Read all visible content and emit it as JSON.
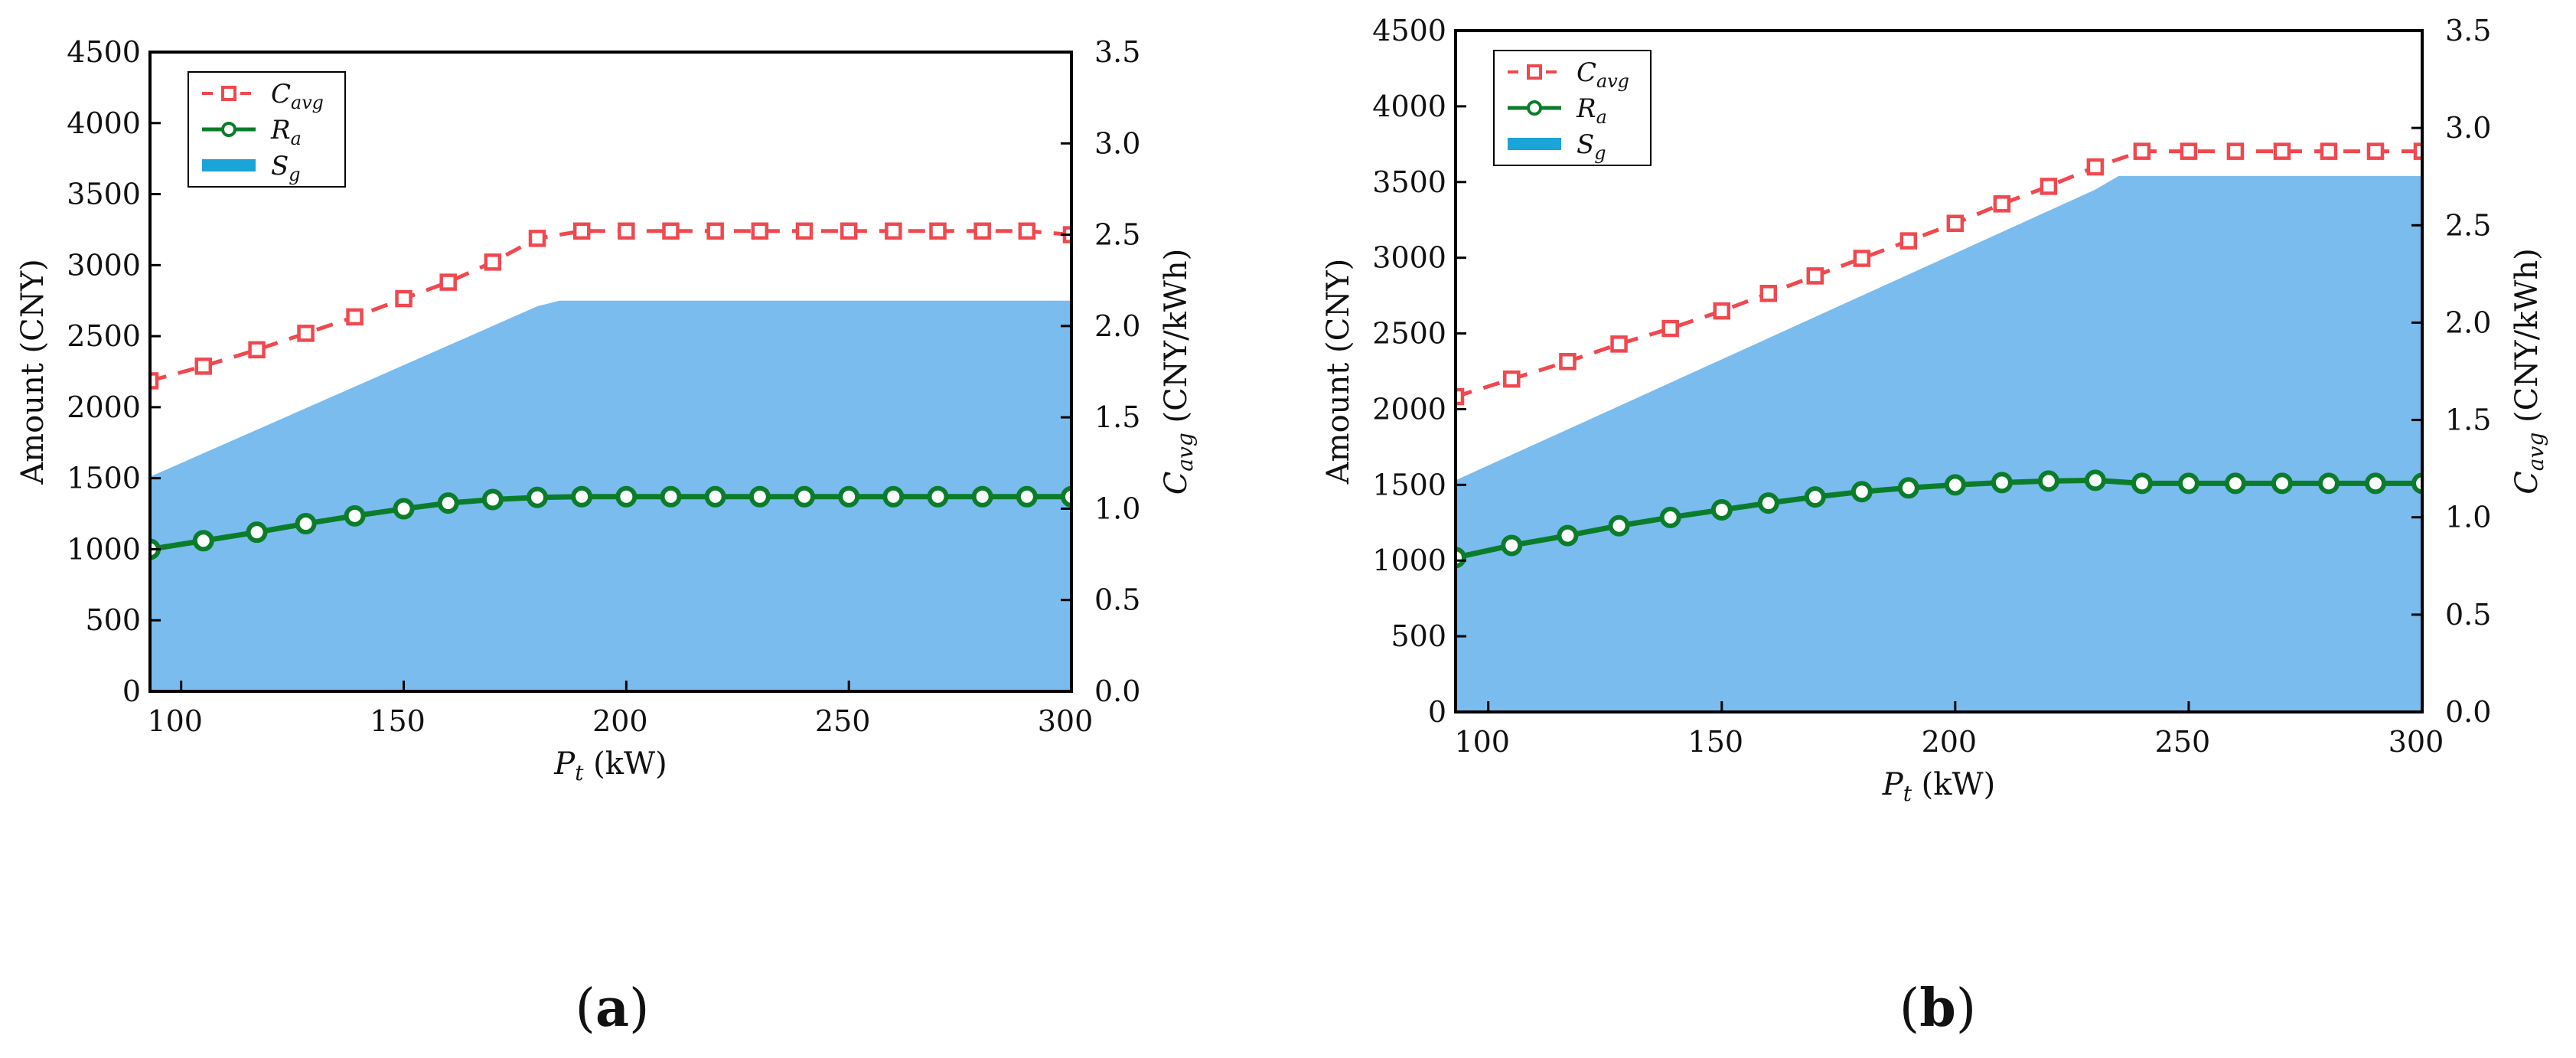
{
  "chart_data": [
    {
      "type": "line",
      "panel_label": "a",
      "xlabel": {
        "symbol": "P",
        "sub": "t",
        "unit": " (kW)"
      },
      "ylabel": "Amount (CNY)",
      "y2label": {
        "symbol": "C",
        "sub": "avg",
        "unit": " (CNY/kWh)"
      },
      "xlim": [
        93,
        300
      ],
      "ylim": [
        0,
        4500
      ],
      "y2lim": [
        0,
        3.5
      ],
      "xticks": [
        "100",
        "150",
        "200",
        "250",
        "300"
      ],
      "yticks": [
        "0",
        "500",
        "1000",
        "1500",
        "2000",
        "2500",
        "3000",
        "3500",
        "4000",
        "4500"
      ],
      "y2ticks": [
        "0.0",
        "0.5",
        "1.0",
        "1.5",
        "2.0",
        "2.5",
        "3.0",
        "3.5"
      ],
      "legend": [
        {
          "key": "cavg",
          "symbol": "C",
          "sub": "avg"
        },
        {
          "key": "ra",
          "symbol": "R",
          "sub": "a"
        },
        {
          "key": "sg",
          "symbol": "S",
          "sub": "g"
        }
      ],
      "legend_position": "top-left",
      "series": [
        {
          "name": "Cavg",
          "axis": "right",
          "style": "dashed-square",
          "color": "#f0484f",
          "x": [
            93,
            105,
            117,
            128,
            139,
            150,
            160,
            170,
            180,
            190,
            200,
            210,
            220,
            230,
            240,
            250,
            260,
            270,
            280,
            290,
            300
          ],
          "values": [
            1.7,
            1.78,
            1.87,
            1.96,
            2.05,
            2.15,
            2.24,
            2.35,
            2.48,
            2.52,
            2.52,
            2.52,
            2.52,
            2.52,
            2.52,
            2.52,
            2.52,
            2.52,
            2.52,
            2.52,
            2.5
          ]
        },
        {
          "name": "Ra",
          "axis": "left",
          "style": "solid-circle",
          "color": "#0b7d2a",
          "x": [
            93,
            105,
            117,
            128,
            139,
            150,
            160,
            170,
            180,
            190,
            200,
            210,
            220,
            230,
            240,
            250,
            260,
            270,
            280,
            290,
            300
          ],
          "values": [
            1000,
            1060,
            1120,
            1180,
            1235,
            1285,
            1325,
            1350,
            1365,
            1370,
            1370,
            1370,
            1370,
            1370,
            1370,
            1370,
            1370,
            1370,
            1370,
            1370,
            1370
          ]
        },
        {
          "name": "Sg",
          "axis": "left",
          "style": "area",
          "color": "#7abcee",
          "x": [
            93,
            180,
            185,
            300
          ],
          "values": [
            1510,
            2710,
            2750,
            2750
          ]
        }
      ]
    },
    {
      "type": "line",
      "panel_label": "b",
      "xlabel": {
        "symbol": "P",
        "sub": "t",
        "unit": " (kW)"
      },
      "ylabel": "Amount (CNY)",
      "y2label": {
        "symbol": "C",
        "sub": "avg",
        "unit": " (CNY/kWh)"
      },
      "xlim": [
        93,
        300
      ],
      "ylim": [
        0,
        4500
      ],
      "y2lim": [
        0,
        3.5
      ],
      "xticks": [
        "100",
        "150",
        "200",
        "250",
        "300"
      ],
      "yticks": [
        "0",
        "500",
        "1000",
        "1500",
        "2000",
        "2500",
        "3000",
        "3500",
        "4000",
        "4500"
      ],
      "y2ticks": [
        "0.0",
        "0.5",
        "1.0",
        "1.5",
        "2.0",
        "2.5",
        "3.0",
        "3.5"
      ],
      "legend": [
        {
          "key": "cavg",
          "symbol": "C",
          "sub": "avg"
        },
        {
          "key": "ra",
          "symbol": "R",
          "sub": "a"
        },
        {
          "key": "sg",
          "symbol": "S",
          "sub": "g"
        }
      ],
      "legend_position": "top-left",
      "series": [
        {
          "name": "Cavg",
          "axis": "right",
          "style": "dashed-square",
          "color": "#f0484f",
          "x": [
            93,
            105,
            117,
            128,
            139,
            150,
            160,
            170,
            180,
            190,
            200,
            210,
            220,
            230,
            240,
            250,
            260,
            270,
            280,
            290,
            300
          ],
          "values": [
            1.62,
            1.71,
            1.8,
            1.89,
            1.97,
            2.06,
            2.15,
            2.24,
            2.33,
            2.42,
            2.51,
            2.61,
            2.7,
            2.8,
            2.88,
            2.88,
            2.88,
            2.88,
            2.88,
            2.88,
            2.88
          ]
        },
        {
          "name": "Ra",
          "axis": "left",
          "style": "solid-circle",
          "color": "#0b7d2a",
          "x": [
            93,
            105,
            117,
            128,
            139,
            150,
            160,
            170,
            180,
            190,
            200,
            210,
            220,
            230,
            240,
            250,
            260,
            270,
            280,
            290,
            300
          ],
          "values": [
            1020,
            1100,
            1165,
            1230,
            1285,
            1335,
            1380,
            1420,
            1455,
            1480,
            1500,
            1515,
            1525,
            1530,
            1510,
            1510,
            1510,
            1510,
            1510,
            1510,
            1510
          ]
        },
        {
          "name": "Sg",
          "axis": "left",
          "style": "area",
          "color": "#7abcee",
          "x": [
            93,
            230,
            235,
            300
          ],
          "values": [
            1530,
            3450,
            3540,
            3540
          ]
        }
      ]
    }
  ]
}
